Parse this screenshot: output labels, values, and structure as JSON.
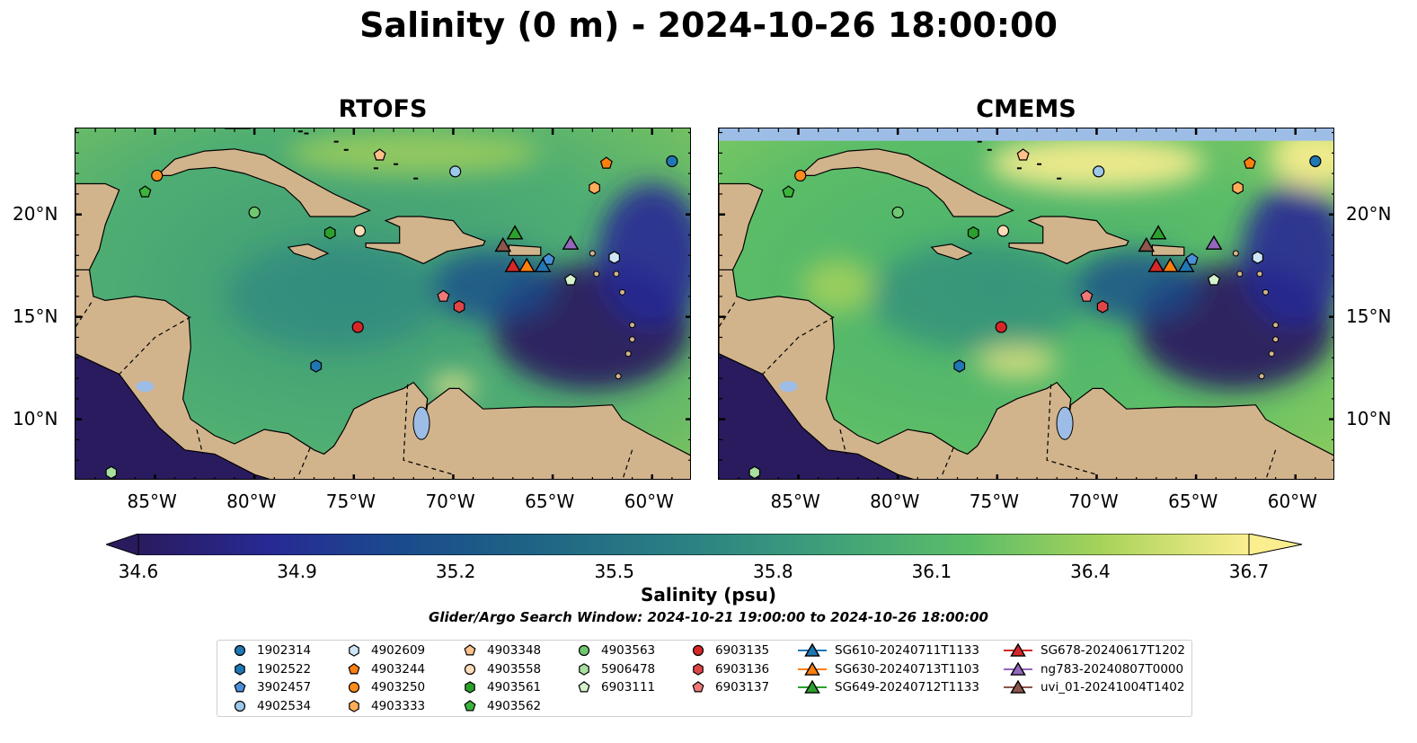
{
  "title": "Salinity (0 m) - 2024-10-26 18:00:00",
  "panels": [
    {
      "title": "RTOFS"
    },
    {
      "title": "CMEMS"
    }
  ],
  "lat_ticks": [
    "20°N",
    "15°N",
    "10°N"
  ],
  "lon_ticks": [
    "85°W",
    "80°W",
    "75°W",
    "70°W",
    "65°W",
    "60°W"
  ],
  "colorbar": {
    "label": "Salinity (psu)",
    "ticks": [
      "34.6",
      "34.9",
      "35.2",
      "35.5",
      "35.8",
      "36.1",
      "36.4",
      "36.7"
    ],
    "range": [
      34.6,
      36.7
    ],
    "colormap": "haline"
  },
  "search_window": "Glider/Argo Search Window: 2024-10-21 19:00:00 to 2024-10-26 18:00:00",
  "colors": {
    "land": "#d2b48c",
    "lakes": "#9dbde6",
    "low_salinity": "#2a1b5f",
    "high_salinity": "#fbee8f"
  },
  "chart_data": {
    "type": "heatmap",
    "lon_range": [
      -89,
      -58
    ],
    "lat_range": [
      7,
      24.2
    ],
    "floats": [
      {
        "id": "1902314",
        "marker": "circle",
        "color": "#1f77b4",
        "lon": -59,
        "lat": 22.6
      },
      {
        "id": "1902522",
        "marker": "hexagon",
        "color": "#1f77b4",
        "lon": -76.9,
        "lat": 12.6
      },
      {
        "id": "3902457",
        "marker": "pentagon",
        "color": "#4a90d9",
        "lon": -65.2,
        "lat": 17.8
      },
      {
        "id": "4902534",
        "marker": "circle",
        "color": "#9ec8ea",
        "lon": -69.9,
        "lat": 22.1
      },
      {
        "id": "4902609",
        "marker": "hexagon",
        "color": "#cfe6f7",
        "lon": -61.9,
        "lat": 17.9
      },
      {
        "id": "4903244",
        "marker": "pentagon",
        "color": "#ff7f0e",
        "lon": -62.3,
        "lat": 22.5
      },
      {
        "id": "4903250",
        "marker": "circle",
        "color": "#ff8c1a",
        "lon": -84.9,
        "lat": 21.9
      },
      {
        "id": "4903333",
        "marker": "hexagon",
        "color": "#ffad5c",
        "lon": -62.9,
        "lat": 21.3
      },
      {
        "id": "4903348",
        "marker": "pentagon",
        "color": "#ffc08a",
        "lon": -73.7,
        "lat": 22.9
      },
      {
        "id": "4903558",
        "marker": "circle",
        "color": "#ffdcb8",
        "lon": -74.7,
        "lat": 19.2
      },
      {
        "id": "4903561",
        "marker": "hexagon",
        "color": "#2ca02c",
        "lon": -76.2,
        "lat": 19.1
      },
      {
        "id": "4903562",
        "marker": "pentagon",
        "color": "#3cb43c",
        "lon": -85.5,
        "lat": 21.1
      },
      {
        "id": "4903563",
        "marker": "circle",
        "color": "#6fc76f",
        "lon": -80,
        "lat": 20.1
      },
      {
        "id": "5906478",
        "marker": "hexagon",
        "color": "#a8e0a0",
        "lon": -87.2,
        "lat": 7.4
      },
      {
        "id": "6903111",
        "marker": "pentagon",
        "color": "#d4f2cd",
        "lon": -64.1,
        "lat": 16.8
      },
      {
        "id": "6903135",
        "marker": "circle",
        "color": "#d62728",
        "lon": -74.8,
        "lat": 14.5
      },
      {
        "id": "6903136",
        "marker": "hexagon",
        "color": "#e04545",
        "lon": -69.7,
        "lat": 15.5
      },
      {
        "id": "6903137",
        "marker": "pentagon",
        "color": "#f07878",
        "lon": -70.5,
        "lat": 16
      }
    ],
    "gliders": [
      {
        "id": "SG610-20240711T1133",
        "color": "#1f77b4",
        "lon": -65.5,
        "lat": 17.5
      },
      {
        "id": "SG630-20240713T1103",
        "color": "#ff7f0e",
        "lon": -66.3,
        "lat": 17.5
      },
      {
        "id": "SG649-20240712T1133",
        "color": "#2ca02c",
        "lon": -66.9,
        "lat": 19.1
      },
      {
        "id": "SG678-20240617T1202",
        "color": "#d62728",
        "lon": -67,
        "lat": 17.5
      },
      {
        "id": "ng783-20240807T0000",
        "color": "#9467bd",
        "lon": -64.1,
        "lat": 18.6
      },
      {
        "id": "uvi_01-20241004T1402",
        "color": "#8c564b",
        "lon": -67.5,
        "lat": 18.5
      }
    ]
  }
}
